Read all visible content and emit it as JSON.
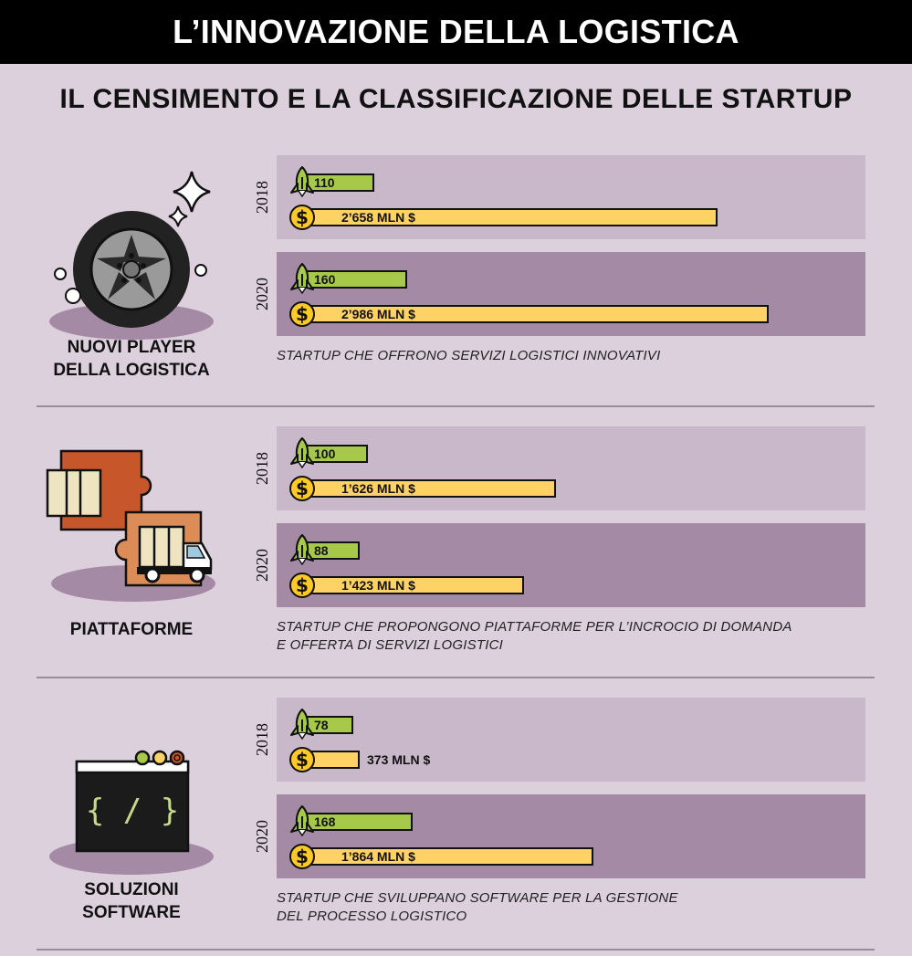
{
  "title": "L’INNOVAZIONE DELLA LOGISTICA",
  "subtitle": "IL CENSIMENTO E LA CLASSIFICAZIONE DELLE STARTUP",
  "colors": {
    "background": "#dcd0dd",
    "startups_bar": "#a6c94a",
    "funding_bar": "#ffd266",
    "panel_2018": "#c8b8ca",
    "panel_2020": "#a48aa4"
  },
  "chart_data": {
    "type": "bar",
    "orientation": "horizontal",
    "title": "IL CENSIMENTO E LA CLASSIFICAZIONE DELLE STARTUP",
    "series_icons": [
      "rocket-icon",
      "dollar-coin-icon"
    ],
    "groups": [
      {
        "category": "NUOVI PLAYER DELLA LOGISTICA",
        "category_lines": [
          "NUOVI PLAYER",
          "DELLA LOGISTICA"
        ],
        "icon": "tire-icon",
        "description_lines": [
          "STARTUP CHE OFFRONO SERVIZI LOGISTICI INNOVATIVI"
        ],
        "years": [
          {
            "year": "2018",
            "startups": 110,
            "startups_label": "110",
            "funding_mln_usd": 2658,
            "funding_label": "2’658 MLN $"
          },
          {
            "year": "2020",
            "startups": 160,
            "startups_label": "160",
            "funding_mln_usd": 2986,
            "funding_label": "2’986 MLN $"
          }
        ]
      },
      {
        "category": "PIATTAFORME",
        "category_lines": [
          "PIATTAFORME"
        ],
        "icon": "puzzle-truck-icon",
        "description_lines": [
          "STARTUP CHE PROPONGONO PIATTAFORME PER L’INCROCIO DI DOMANDA",
          "E OFFERTA DI SERVIZI LOGISTICI"
        ],
        "years": [
          {
            "year": "2018",
            "startups": 100,
            "startups_label": "100",
            "funding_mln_usd": 1626,
            "funding_label": "1’626 MLN $"
          },
          {
            "year": "2020",
            "startups": 88,
            "startups_label": "88",
            "funding_mln_usd": 1423,
            "funding_label": "1’423 MLN $"
          }
        ]
      },
      {
        "category": "SOLUZIONI SOFTWARE",
        "category_lines": [
          "SOLUZIONI",
          "SOFTWARE"
        ],
        "icon": "code-window-icon",
        "description_lines": [
          "STARTUP CHE SVILUPPANO SOFTWARE PER LA GESTIONE",
          "DEL PROCESSO LOGISTICO"
        ],
        "years": [
          {
            "year": "2018",
            "startups": 78,
            "startups_label": "78",
            "funding_mln_usd": 373,
            "funding_label": "373 MLN $"
          },
          {
            "year": "2020",
            "startups": 168,
            "startups_label": "168",
            "funding_mln_usd": 1864,
            "funding_label": "1’864 MLN $"
          }
        ]
      }
    ]
  }
}
